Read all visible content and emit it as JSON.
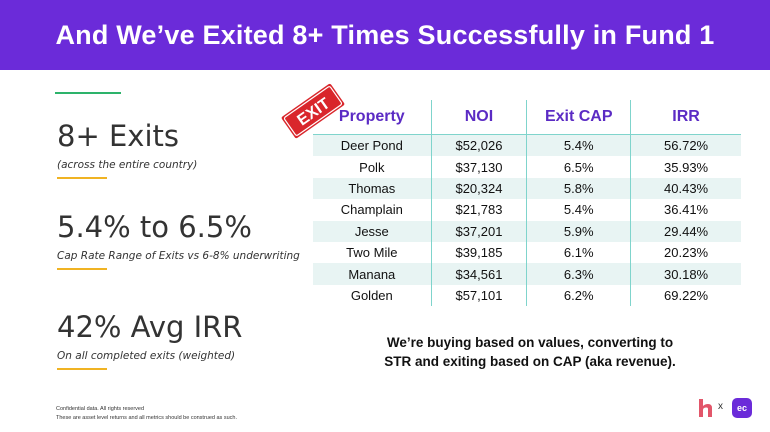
{
  "header": {
    "title": "And We’ve Exited 8+ Times Successfully in Fund 1"
  },
  "stats": [
    {
      "value": "8+ Exits",
      "caption": "(across the entire country)"
    },
    {
      "value": "5.4% to 6.5%",
      "caption": "Cap Rate Range of Exits vs 6-8% underwriting"
    },
    {
      "value": "42% Avg IRR",
      "caption": "On all completed exits (weighted)"
    }
  ],
  "exit_sign": {
    "text": "EXIT",
    "color": "#d9262b"
  },
  "table": {
    "headers": [
      "Property",
      "NOI",
      "Exit CAP",
      "IRR"
    ],
    "rows": [
      [
        "Deer Pond",
        "$52,026",
        "5.4%",
        "56.72%"
      ],
      [
        "Polk",
        "$37,130",
        "6.5%",
        "35.93%"
      ],
      [
        "Thomas",
        "$20,324",
        "5.8%",
        "40.43%"
      ],
      [
        "Champlain",
        "$21,783",
        "5.4%",
        "36.41%"
      ],
      [
        "Jesse",
        "$37,201",
        "5.9%",
        "29.44%"
      ],
      [
        "Two Mile",
        "$39,185",
        "6.1%",
        "20.23%"
      ],
      [
        "Manana",
        "$34,561",
        "6.3%",
        "30.18%"
      ],
      [
        "Golden",
        "$57,101",
        "6.2%",
        "69.22%"
      ]
    ]
  },
  "caption": {
    "line1": "We’re buying based on values, converting to",
    "line2": "STR and exiting based on CAP (aka revenue)."
  },
  "footer": {
    "line1": "Confidential data. All rights reserved",
    "line2": "These are asset level returns and all metrics should be construed as such."
  },
  "logos": {
    "h": "h",
    "x": "x",
    "ec": "ec"
  },
  "colors": {
    "brand_purple": "#6b2bd9",
    "header_text": "#ffffff",
    "accent_green": "#2db36b",
    "accent_gold": "#f0b323",
    "table_header": "#5b2bc4",
    "row_stripe": "#e8f4f3"
  }
}
